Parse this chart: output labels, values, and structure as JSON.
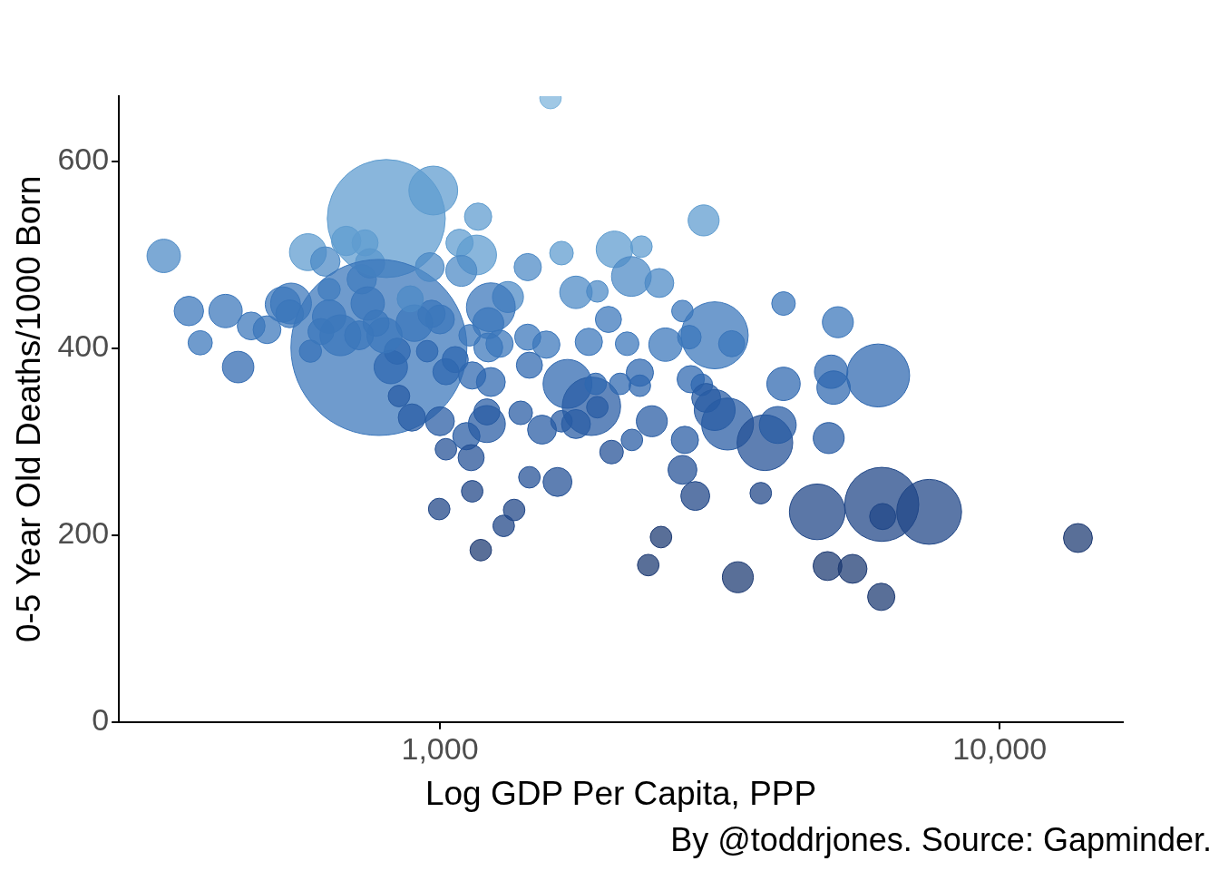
{
  "chart_data": {
    "type": "bubble",
    "xlabel": "Log GDP Per Capita, PPP",
    "ylabel": "0-5 Year Old Deaths/1000 Born",
    "annotations": [
      "By @toddrjones. Source: Gapminder."
    ],
    "log": "x",
    "grid": false,
    "legend": false,
    "xlim": [
      267,
      16600
    ],
    "xticks": [
      {
        "value": 1000,
        "label": "1,000"
      },
      {
        "value": 10000,
        "label": "10,000"
      }
    ],
    "ylim": [
      0,
      670
    ],
    "yticks": [
      0,
      200,
      400,
      600
    ],
    "x": [
      321,
      356,
      373,
      414,
      436,
      460,
      491,
      524,
      542,
      539,
      581,
      587,
      624,
      634,
      634,
      613,
      664,
      680,
      735,
      725,
      750,
      802,
      778,
      973,
      1170,
      1084,
      1163,
      1092,
      959,
      1435,
      1649,
      1576,
      2050,
      2291,
      2198,
      2466,
      1750,
      1911,
      2959,
      4110,
      5140,
      2712,
      3097,
      3320,
      2790,
      2529,
      2160,
      2276,
      2000,
      1845,
      1549,
      1445,
      1435,
      1323,
      1233,
      1278,
      1220,
      1142,
      1233,
      1220,
      1130,
      1065,
      1025,
      1000,
      966,
      949,
      900,
      885,
      845,
      817,
      839,
      796,
      743,
      769,
      717,
      891,
      1000,
      1025,
      1115,
      1137,
      1213,
      1213,
      997,
      1142,
      1183,
      1300,
      1357,
      1445,
      1394,
      1522,
      1622,
      1649,
      1750,
      1690,
      1865,
      1911,
      1898,
      2099,
      2026,
      2203,
      2391,
      2276,
      2806,
      2937,
      2990,
      3097,
      3265,
      3807,
      4014,
      2739,
      2712,
      2859,
      3743,
      2483,
      2356,
      3406,
      4110,
      4721,
      4926,
      5460,
      5000,
      5050,
      4950,
      6066,
      6157,
      6180,
      7482,
      6144,
      13800
    ],
    "values": [
      499,
      440,
      406,
      440,
      380,
      424,
      420,
      447,
      448,
      437,
      503,
      397,
      493,
      463,
      434,
      418,
      414,
      515,
      513,
      474,
      491,
      539,
      401,
      569,
      541,
      513,
      500,
      483,
      487,
      487,
      502,
      668,
      506,
      509,
      477,
      470,
      460,
      461,
      537,
      448,
      428,
      440,
      414,
      405,
      412,
      404,
      405,
      374,
      431,
      407,
      404,
      382,
      412,
      455,
      444,
      405,
      427,
      371,
      364,
      401,
      414,
      388,
      375,
      431,
      437,
      397,
      427,
      453,
      349,
      380,
      397,
      414,
      448,
      427,
      414,
      326,
      322,
      292,
      306,
      283,
      319,
      332,
      228,
      247,
      184,
      210,
      227,
      262,
      331,
      313,
      257,
      322,
      319,
      362,
      338,
      337,
      362,
      362,
      289,
      302,
      322,
      360,
      367,
      361,
      347,
      334,
      319,
      299,
      318,
      302,
      270,
      242,
      245,
      198,
      168,
      155,
      362,
      225,
      167,
      164,
      375,
      358,
      304,
      371,
      233,
      220,
      225,
      134,
      197
    ],
    "sizes": [
      0.036,
      0.028,
      0.019,
      0.036,
      0.032,
      0.025,
      0.025,
      0.04,
      0.054,
      0.025,
      0.044,
      0.016,
      0.028,
      0.016,
      0.036,
      0.022,
      0.054,
      0.028,
      0.022,
      0.028,
      0.028,
      0.45,
      1,
      0.077,
      0.024,
      0.024,
      0.051,
      0.031,
      0.027,
      0.024,
      0.018,
      0.015,
      0.043,
      0.015,
      0.051,
      0.027,
      0.034,
      0.015,
      0.031,
      0.018,
      0.031,
      0.015,
      0.145,
      0.022,
      0.018,
      0.036,
      0.018,
      0.024,
      0.022,
      0.024,
      0.024,
      0.022,
      0.022,
      0.031,
      0.077,
      0.024,
      0.031,
      0.024,
      0.027,
      0.027,
      0.015,
      0.022,
      0.022,
      0.027,
      0.024,
      0.015,
      0.043,
      0.022,
      0.015,
      0.036,
      0.022,
      0.04,
      0.036,
      0.022,
      0.027,
      0.024,
      0.027,
      0.015,
      0.024,
      0.022,
      0.044,
      0.022,
      0.015,
      0.015,
      0.015,
      0.015,
      0.015,
      0.015,
      0.018,
      0.027,
      0.027,
      0.015,
      0.027,
      0.077,
      0.11,
      0.015,
      0.015,
      0.015,
      0.018,
      0.015,
      0.031,
      0.015,
      0.024,
      0.015,
      0.027,
      0.054,
      0.087,
      0.1,
      0.044,
      0.024,
      0.027,
      0.027,
      0.015,
      0.015,
      0.015,
      0.031,
      0.036,
      0.1,
      0.027,
      0.027,
      0.036,
      0.036,
      0.031,
      0.128,
      0.177,
      0.022,
      0.136,
      0.024,
      0.027
    ],
    "colors": [
      "#4d8ac6",
      "#3a76bb",
      "#3a76bb",
      "#3a76bb",
      "#2f68b0",
      "#3a76bb",
      "#3a76bb",
      "#3a76bb",
      "#3a76bb",
      "#3a76bb",
      "#5e9ccf",
      "#2f68b0",
      "#4d8ac6",
      "#4d8ac6",
      "#3a76bb",
      "#3a76bb",
      "#3a76bb",
      "#5e9ccf",
      "#5e9ccf",
      "#4d8ac6",
      "#4d8ac6",
      "#5e9ccf",
      "#3a76bb",
      "#5e9ccf",
      "#5e9ccf",
      "#5e9ccf",
      "#5e9ccf",
      "#4d8ac6",
      "#4d8ac6",
      "#4d8ac6",
      "#5e9ccf",
      "#7db4dc",
      "#5e9ccf",
      "#5e9ccf",
      "#4d8ac6",
      "#4d8ac6",
      "#4d8ac6",
      "#4d8ac6",
      "#5e9ccf",
      "#3a76bb",
      "#3a76bb",
      "#3a76bb",
      "#3a76bb",
      "#3a76bb",
      "#3a76bb",
      "#3a76bb",
      "#3a76bb",
      "#2f68b0",
      "#3a76bb",
      "#3a76bb",
      "#3a76bb",
      "#2f68b0",
      "#3a76bb",
      "#4d8ac6",
      "#3a76bb",
      "#3a76bb",
      "#3a76bb",
      "#2f68b0",
      "#2f68b0",
      "#3a76bb",
      "#3a76bb",
      "#2f68b0",
      "#2f68b0",
      "#3a76bb",
      "#3a76bb",
      "#2f68b0",
      "#3a76bb",
      "#4d8ac6",
      "#285ca3",
      "#2f68b0",
      "#2f68b0",
      "#3a76bb",
      "#3a76bb",
      "#3a76bb",
      "#3a76bb",
      "#285ca3",
      "#285ca3",
      "#245196",
      "#285ca3",
      "#245196",
      "#285ca3",
      "#285ca3",
      "#1f4687",
      "#1f4687",
      "#1d3a73",
      "#1f4687",
      "#1f4687",
      "#245196",
      "#285ca3",
      "#285ca3",
      "#245196",
      "#285ca3",
      "#285ca3",
      "#2f68b0",
      "#285ca3",
      "#285ca3",
      "#2f68b0",
      "#2f68b0",
      "#245196",
      "#285ca3",
      "#285ca3",
      "#2f68b0",
      "#2f68b0",
      "#2f68b0",
      "#285ca3",
      "#285ca3",
      "#285ca3",
      "#245196",
      "#285ca3",
      "#285ca3",
      "#245196",
      "#1f4687",
      "#1f4687",
      "#1d3a73",
      "#1d3a73",
      "#1d3a73",
      "#2f68b0",
      "#1f4687",
      "#1d3a73",
      "#1d3a73",
      "#2f68b0",
      "#2f68b0",
      "#285ca3",
      "#2f68b0",
      "#1f4687",
      "#1f4687",
      "#1f4687",
      "#1d3a73",
      "#1d3a73"
    ]
  }
}
